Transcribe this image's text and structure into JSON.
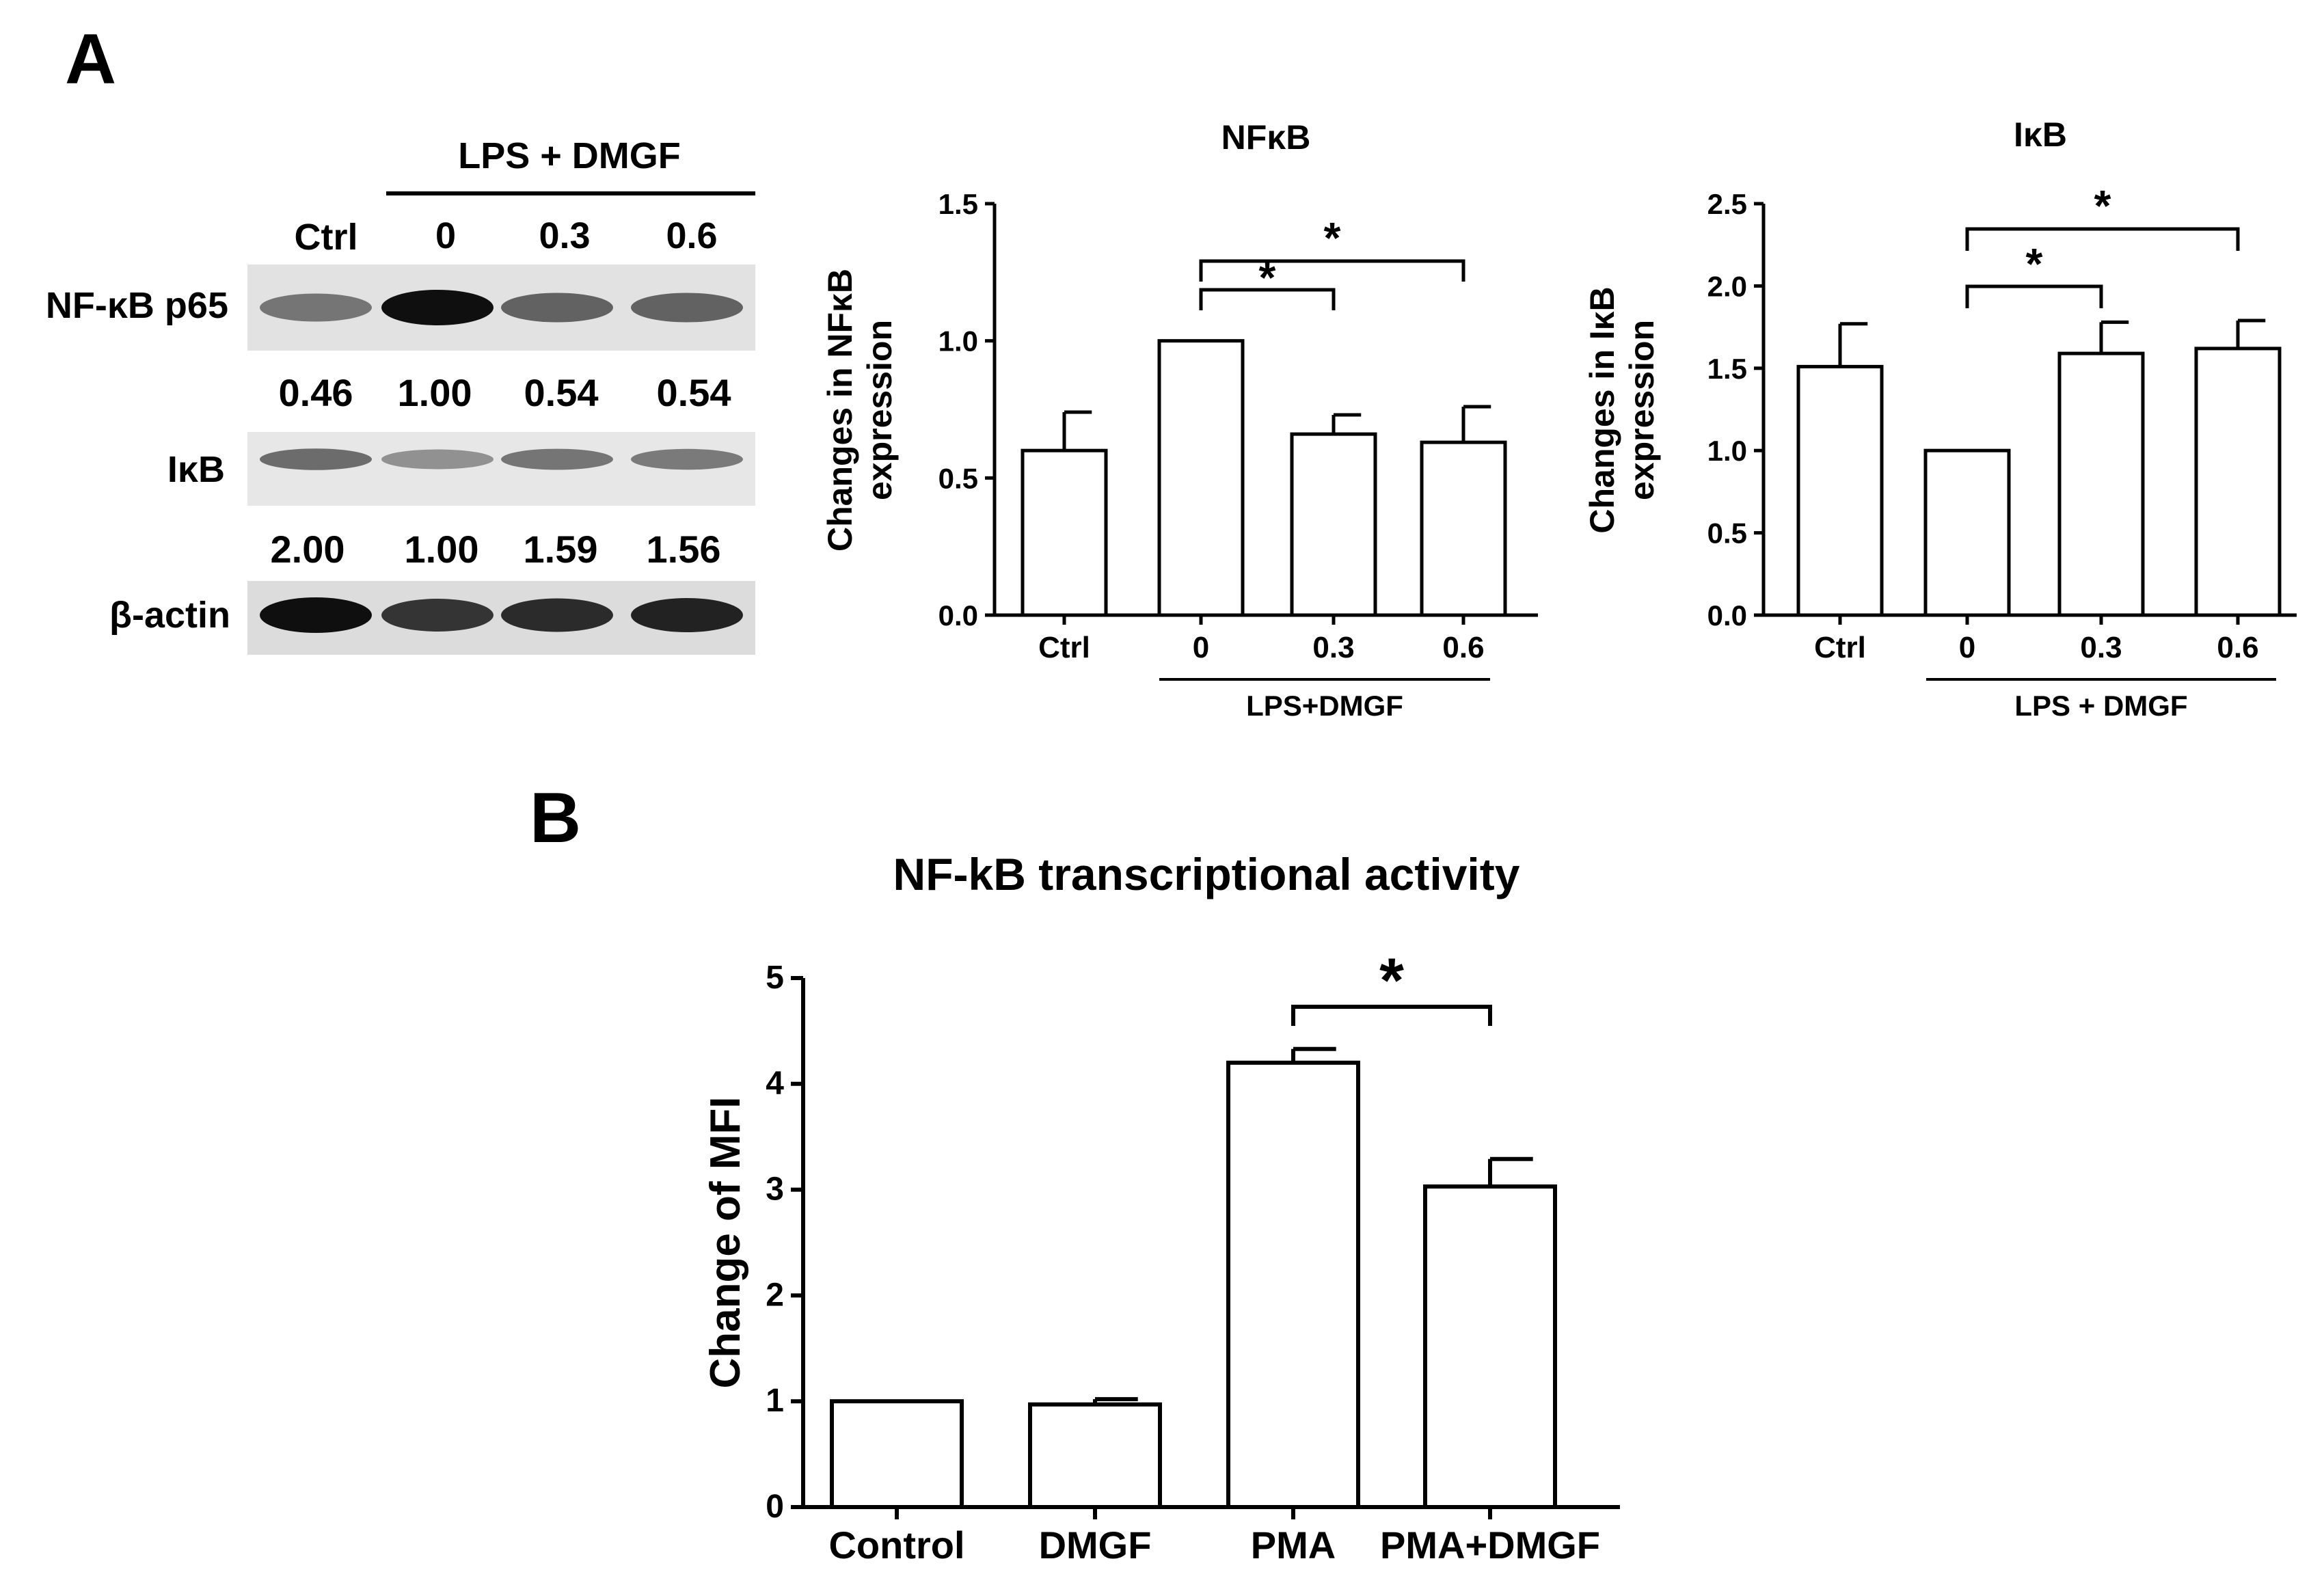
{
  "panel_labels": {
    "a": "A",
    "b": "B"
  },
  "blot": {
    "group_label": "LPS + DMGF",
    "lanes": [
      "Ctrl",
      "0",
      "0.3",
      "0.6"
    ],
    "proteins": [
      {
        "name": "NF-κB p65",
        "values": [
          "0.46",
          "1.00",
          "0.54",
          "0.54"
        ],
        "intensity": [
          0.45,
          1.0,
          0.55,
          0.55
        ]
      },
      {
        "name": "IκB",
        "values": [
          "2.00",
          "1.00",
          "1.59",
          "1.56"
        ],
        "intensity": [
          0.5,
          0.3,
          0.45,
          0.42
        ]
      },
      {
        "name": "β-actin",
        "values": [],
        "intensity": [
          1.0,
          0.8,
          0.85,
          0.9
        ]
      }
    ]
  },
  "chart_data": [
    {
      "type": "bar",
      "title": "NFκB",
      "ylabel": [
        "Changes in NFκB",
        "expression"
      ],
      "categories": [
        "Ctrl",
        "0",
        "0.3",
        "0.6"
      ],
      "values": [
        0.6,
        1.0,
        0.66,
        0.63
      ],
      "errors": [
        0.14,
        0.0,
        0.07,
        0.13
      ],
      "ylim": [
        0,
        1.5
      ],
      "yticks": [
        "0.0",
        "0.5",
        "1.0",
        "1.5"
      ],
      "group_label": "LPS+DMGF",
      "significance": [
        {
          "from": 1,
          "to": 2,
          "label": "*"
        },
        {
          "from": 1,
          "to": 3,
          "label": "*"
        }
      ]
    },
    {
      "type": "bar",
      "title": "IκB",
      "ylabel": [
        "Changes in IκB",
        "expression"
      ],
      "categories": [
        "Ctrl",
        "0",
        "0.3",
        "0.6"
      ],
      "values": [
        1.51,
        1.0,
        1.59,
        1.62
      ],
      "errors": [
        0.26,
        0.0,
        0.19,
        0.17
      ],
      "ylim": [
        0,
        2.5
      ],
      "yticks": [
        "0.0",
        "0.5",
        "1.0",
        "1.5",
        "2.0",
        "2.5"
      ],
      "group_label": "LPS + DMGF",
      "significance": [
        {
          "from": 1,
          "to": 2,
          "label": "*"
        },
        {
          "from": 1,
          "to": 3,
          "label": "*"
        }
      ]
    },
    {
      "type": "bar",
      "title": "NF-kB transcriptional activity",
      "ylabel": [
        "Change of MFI"
      ],
      "categories": [
        "Control",
        "DMGF",
        "PMA",
        "PMA+DMGF"
      ],
      "values": [
        1.0,
        0.97,
        4.2,
        3.03
      ],
      "errors": [
        0.0,
        0.05,
        0.13,
        0.26
      ],
      "ylim": [
        0,
        5
      ],
      "yticks": [
        "0",
        "1",
        "2",
        "3",
        "4",
        "5"
      ],
      "significance": [
        {
          "from": 2,
          "to": 3,
          "label": "*"
        }
      ]
    }
  ]
}
